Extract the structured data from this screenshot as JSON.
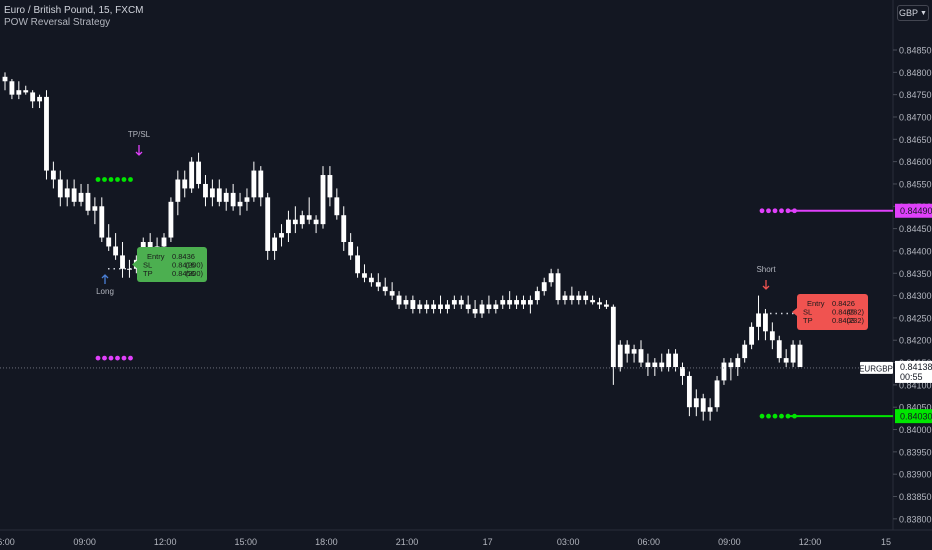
{
  "header": {
    "title": "Euro / British Pound, 15, FXCM",
    "subtitle": "POW Reversal Strategy",
    "currency": "GBP"
  },
  "chart_data": {
    "type": "candlestick",
    "y_range": [
      0.83775,
      0.84962
    ],
    "y_ticks": [
      "0.84850",
      "0.84800",
      "0.84750",
      "0.84700",
      "0.84650",
      "0.84600",
      "0.84550",
      "0.84500",
      "0.84450",
      "0.84400",
      "0.84350",
      "0.84300",
      "0.84250",
      "0.84200",
      "0.84150",
      "0.84100",
      "0.84050",
      "0.84000",
      "0.83950",
      "0.83900",
      "0.83850",
      "0.83800"
    ],
    "x_ticks": [
      "6:00",
      "09:00",
      "12:00",
      "15:00",
      "18:00",
      "21:00",
      "17",
      "03:00",
      "06:00",
      "09:00",
      "12:00",
      "15"
    ],
    "last_price": {
      "label": "EURGBP",
      "price": "0.84138",
      "countdown": "00:55",
      "value": 0.84138
    },
    "tp_level": {
      "price": "0.84490",
      "value": 0.8449,
      "color": "#e040fb"
    },
    "sl_level": {
      "price": "0.84030",
      "value": 0.8403,
      "color": "#00e600"
    },
    "colors": {
      "up": "#ffffff",
      "down": "#ffffff",
      "background": "#131722",
      "long_box": "#4caf50",
      "short_box": "#f05350",
      "tp_dots": "#e040fb",
      "sl_dots": "#00e600"
    },
    "signals": [
      {
        "label": "Long",
        "direction": "up",
        "color": "#4a7fd6"
      },
      {
        "label": "Short",
        "direction": "down",
        "color": "#f05350"
      },
      {
        "label": "TP/SL",
        "direction": "down",
        "color": "#e040fb"
      }
    ],
    "long_box": {
      "entry_label": "Entry",
      "entry": "0.8436",
      "sl_label": "SL",
      "sl": "0.8416",
      "sl_pips": "(200)",
      "tp_label": "TP",
      "tp": "0.8456",
      "tp_pips": "(200)"
    },
    "short_box": {
      "entry_label": "Entry",
      "entry": "0.8426",
      "sl_label": "SL",
      "sl": "0.8449",
      "sl_pips": "(232)",
      "tp_label": "TP",
      "tp": "0.8403",
      "tp_pips": "(232)"
    },
    "candles": [
      [
        0.8479,
        0.848,
        0.8476,
        0.8478
      ],
      [
        0.8478,
        0.84785,
        0.8474,
        0.8475
      ],
      [
        0.8475,
        0.8478,
        0.8474,
        0.8476
      ],
      [
        0.8476,
        0.8477,
        0.8475,
        0.84755
      ],
      [
        0.84755,
        0.8476,
        0.8472,
        0.84735
      ],
      [
        0.84735,
        0.8475,
        0.8472,
        0.84745
      ],
      [
        0.84745,
        0.8476,
        0.8456,
        0.8458
      ],
      [
        0.8458,
        0.846,
        0.8454,
        0.8456
      ],
      [
        0.8456,
        0.8458,
        0.845,
        0.8452
      ],
      [
        0.8452,
        0.8456,
        0.845,
        0.8454
      ],
      [
        0.8454,
        0.8456,
        0.845,
        0.8451
      ],
      [
        0.8451,
        0.8455,
        0.845,
        0.8453
      ],
      [
        0.8453,
        0.8455,
        0.8448,
        0.8449
      ],
      [
        0.8449,
        0.8452,
        0.8446,
        0.845
      ],
      [
        0.845,
        0.8452,
        0.8442,
        0.8443
      ],
      [
        0.8443,
        0.8446,
        0.844,
        0.8441
      ],
      [
        0.8441,
        0.8444,
        0.8438,
        0.8439
      ],
      [
        0.8439,
        0.8442,
        0.8434,
        0.8436
      ],
      [
        0.8436,
        0.8438,
        0.8434,
        0.8436
      ],
      [
        0.8436,
        0.8439,
        0.8435,
        0.8438
      ],
      [
        0.8438,
        0.8443,
        0.8436,
        0.8442
      ],
      [
        0.8442,
        0.8444,
        0.8438,
        0.844
      ],
      [
        0.844,
        0.8443,
        0.8438,
        0.8441
      ],
      [
        0.8441,
        0.8444,
        0.8439,
        0.8443
      ],
      [
        0.8443,
        0.8452,
        0.8442,
        0.8451
      ],
      [
        0.8451,
        0.8458,
        0.8448,
        0.8456
      ],
      [
        0.8456,
        0.8458,
        0.8452,
        0.8454
      ],
      [
        0.8454,
        0.8461,
        0.8453,
        0.846
      ],
      [
        0.846,
        0.8462,
        0.8454,
        0.8455
      ],
      [
        0.8455,
        0.8457,
        0.845,
        0.8452
      ],
      [
        0.8452,
        0.8456,
        0.845,
        0.8454
      ],
      [
        0.8454,
        0.8456,
        0.845,
        0.8451
      ],
      [
        0.8451,
        0.8454,
        0.8449,
        0.8453
      ],
      [
        0.8453,
        0.8455,
        0.8449,
        0.845
      ],
      [
        0.845,
        0.8453,
        0.8448,
        0.8451
      ],
      [
        0.8451,
        0.8454,
        0.8449,
        0.8452
      ],
      [
        0.8452,
        0.846,
        0.8451,
        0.8458
      ],
      [
        0.8458,
        0.8459,
        0.845,
        0.8452
      ],
      [
        0.8452,
        0.8453,
        0.8438,
        0.844
      ],
      [
        0.844,
        0.8444,
        0.8438,
        0.8443
      ],
      [
        0.8443,
        0.8446,
        0.8441,
        0.8444
      ],
      [
        0.8444,
        0.8449,
        0.8442,
        0.8447
      ],
      [
        0.8447,
        0.845,
        0.8444,
        0.8446
      ],
      [
        0.8446,
        0.8449,
        0.8445,
        0.8448
      ],
      [
        0.8448,
        0.8452,
        0.8446,
        0.8447
      ],
      [
        0.8447,
        0.8448,
        0.8444,
        0.8446
      ],
      [
        0.8446,
        0.8459,
        0.8445,
        0.8457
      ],
      [
        0.8457,
        0.8459,
        0.845,
        0.8452
      ],
      [
        0.8452,
        0.8454,
        0.8447,
        0.8448
      ],
      [
        0.8448,
        0.845,
        0.844,
        0.8442
      ],
      [
        0.8442,
        0.8444,
        0.8438,
        0.8439
      ],
      [
        0.8439,
        0.8441,
        0.8434,
        0.8435
      ],
      [
        0.8435,
        0.8437,
        0.8433,
        0.8434
      ],
      [
        0.8434,
        0.8435,
        0.8432,
        0.8433
      ],
      [
        0.8433,
        0.8435,
        0.8431,
        0.8432
      ],
      [
        0.8432,
        0.8434,
        0.843,
        0.8431
      ],
      [
        0.8431,
        0.8433,
        0.8429,
        0.843
      ],
      [
        0.843,
        0.8431,
        0.8427,
        0.8428
      ],
      [
        0.8428,
        0.843,
        0.8427,
        0.8429
      ],
      [
        0.8429,
        0.843,
        0.8426,
        0.8427
      ],
      [
        0.8427,
        0.8429,
        0.8426,
        0.8428
      ],
      [
        0.8428,
        0.8429,
        0.8426,
        0.8427
      ],
      [
        0.8427,
        0.8429,
        0.8426,
        0.8428
      ],
      [
        0.8428,
        0.843,
        0.8426,
        0.8427
      ],
      [
        0.8427,
        0.8429,
        0.8426,
        0.8428
      ],
      [
        0.8428,
        0.843,
        0.8427,
        0.8429
      ],
      [
        0.8429,
        0.843,
        0.8427,
        0.8428
      ],
      [
        0.8428,
        0.843,
        0.8426,
        0.8427
      ],
      [
        0.8427,
        0.8429,
        0.8425,
        0.8426
      ],
      [
        0.8426,
        0.8429,
        0.8425,
        0.8428
      ],
      [
        0.8428,
        0.843,
        0.8426,
        0.8427
      ],
      [
        0.8427,
        0.8429,
        0.8426,
        0.8428
      ],
      [
        0.8428,
        0.843,
        0.8427,
        0.8429
      ],
      [
        0.8429,
        0.8431,
        0.8427,
        0.8428
      ],
      [
        0.8428,
        0.843,
        0.8427,
        0.8429
      ],
      [
        0.8429,
        0.843,
        0.8427,
        0.8428
      ],
      [
        0.8428,
        0.843,
        0.8426,
        0.8429
      ],
      [
        0.8429,
        0.8432,
        0.8428,
        0.8431
      ],
      [
        0.8431,
        0.8434,
        0.843,
        0.8433
      ],
      [
        0.8433,
        0.8436,
        0.8432,
        0.8435
      ],
      [
        0.8435,
        0.8436,
        0.8428,
        0.8429
      ],
      [
        0.8429,
        0.8431,
        0.8428,
        0.843
      ],
      [
        0.843,
        0.8432,
        0.8428,
        0.8429
      ],
      [
        0.8429,
        0.8431,
        0.8428,
        0.843
      ],
      [
        0.843,
        0.8431,
        0.8428,
        0.8429
      ],
      [
        0.8429,
        0.843,
        0.8428,
        0.84285
      ],
      [
        0.84285,
        0.84295,
        0.8427,
        0.8428
      ],
      [
        0.8428,
        0.8429,
        0.8427,
        0.84275
      ],
      [
        0.84275,
        0.8428,
        0.841,
        0.8414
      ],
      [
        0.8414,
        0.842,
        0.8413,
        0.8419
      ],
      [
        0.8419,
        0.842,
        0.8415,
        0.8417
      ],
      [
        0.8417,
        0.8419,
        0.8415,
        0.8418
      ],
      [
        0.8418,
        0.842,
        0.8414,
        0.8415
      ],
      [
        0.8415,
        0.8417,
        0.8412,
        0.8414
      ],
      [
        0.8414,
        0.8416,
        0.8412,
        0.8415
      ],
      [
        0.8415,
        0.8417,
        0.8413,
        0.8414
      ],
      [
        0.8414,
        0.8418,
        0.8413,
        0.8417
      ],
      [
        0.8417,
        0.8418,
        0.8413,
        0.8414
      ],
      [
        0.8414,
        0.8415,
        0.841,
        0.8412
      ],
      [
        0.8412,
        0.8413,
        0.8403,
        0.8405
      ],
      [
        0.8405,
        0.8409,
        0.8403,
        0.8407
      ],
      [
        0.8407,
        0.8408,
        0.8402,
        0.8404
      ],
      [
        0.8404,
        0.8407,
        0.8402,
        0.8405
      ],
      [
        0.8405,
        0.8412,
        0.8404,
        0.8411
      ],
      [
        0.8411,
        0.8416,
        0.841,
        0.8415
      ],
      [
        0.8415,
        0.8416,
        0.8411,
        0.8414
      ],
      [
        0.8414,
        0.8417,
        0.8412,
        0.8416
      ],
      [
        0.8416,
        0.842,
        0.8415,
        0.8419
      ],
      [
        0.8419,
        0.8424,
        0.8418,
        0.8423
      ],
      [
        0.8423,
        0.843,
        0.842,
        0.8426
      ],
      [
        0.8426,
        0.8427,
        0.842,
        0.8422
      ],
      [
        0.8422,
        0.8424,
        0.8418,
        0.842
      ],
      [
        0.842,
        0.8421,
        0.8415,
        0.8416
      ],
      [
        0.8416,
        0.8418,
        0.8414,
        0.8415
      ],
      [
        0.8415,
        0.842,
        0.8414,
        0.8419
      ],
      [
        0.8419,
        0.842,
        0.8414,
        0.8414
      ]
    ]
  }
}
